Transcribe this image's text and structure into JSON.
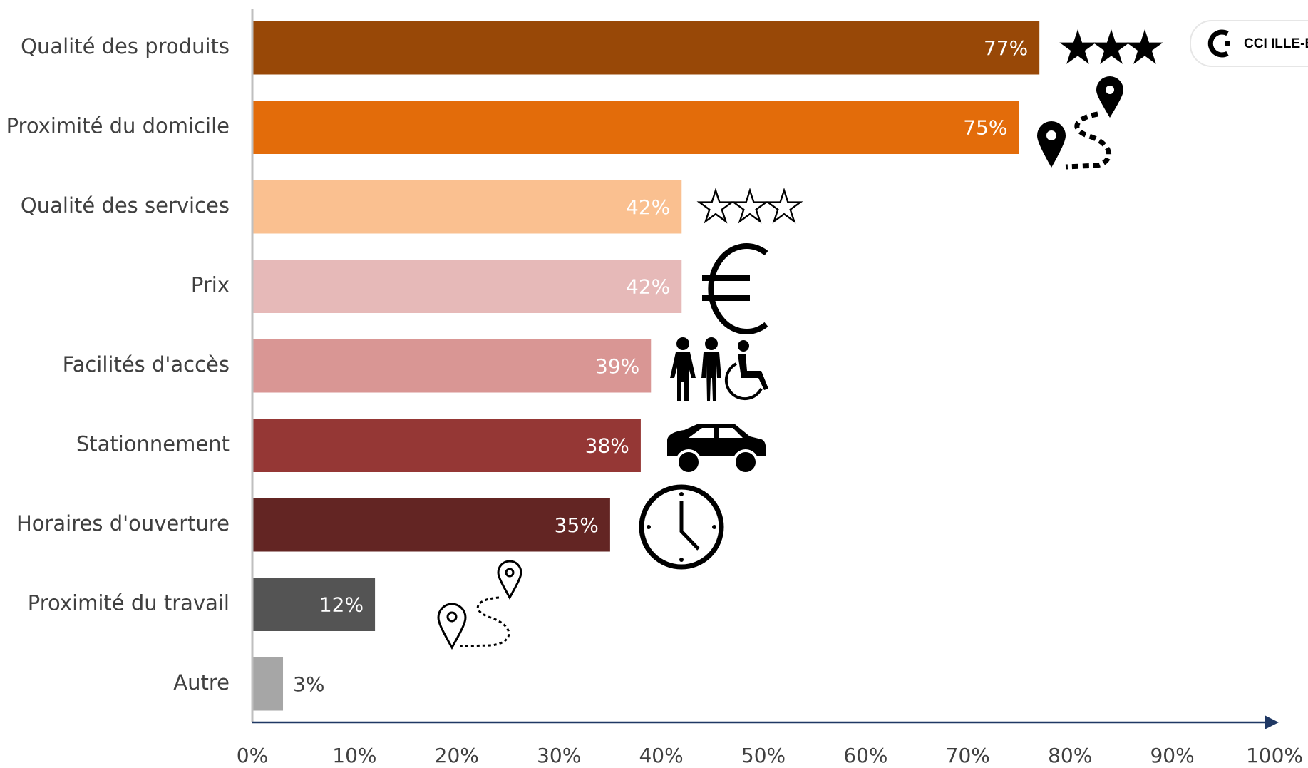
{
  "chart_data": {
    "type": "bar",
    "orientation": "horizontal",
    "categories": [
      "Qualité des produits",
      "Proximité du domicile",
      "Qualité des services",
      "Prix",
      "Facilités d'accès",
      "Stationnement",
      "Horaires d'ouverture",
      "Proximité du travail",
      "Autre"
    ],
    "values": [
      77,
      75,
      42,
      42,
      39,
      38,
      35,
      12,
      3
    ],
    "value_labels": [
      "77%",
      "75%",
      "42%",
      "42%",
      "39%",
      "38%",
      "35%",
      "12%",
      "3%"
    ],
    "colors": [
      "#984807",
      "#e36c0a",
      "#fac090",
      "#e6b9b8",
      "#d99694",
      "#953735",
      "#632523",
      "#545454",
      "#a6a6a6"
    ],
    "xlim": [
      0,
      100
    ],
    "xticks": [
      {
        "value": 0,
        "label": "0%"
      },
      {
        "value": 10,
        "label": "10%"
      },
      {
        "value": 20,
        "label": "20%"
      },
      {
        "value": 30,
        "label": "30%"
      },
      {
        "value": 40,
        "label": "40%"
      },
      {
        "value": 50,
        "label": "50%"
      },
      {
        "value": 60,
        "label": "60%"
      },
      {
        "value": 70,
        "label": "70%"
      },
      {
        "value": 80,
        "label": "80%"
      },
      {
        "value": 90,
        "label": "90%"
      },
      {
        "value": 100,
        "label": "100%"
      }
    ],
    "grid": false,
    "logo": "CCI ILLE-ET-VILAINE"
  }
}
